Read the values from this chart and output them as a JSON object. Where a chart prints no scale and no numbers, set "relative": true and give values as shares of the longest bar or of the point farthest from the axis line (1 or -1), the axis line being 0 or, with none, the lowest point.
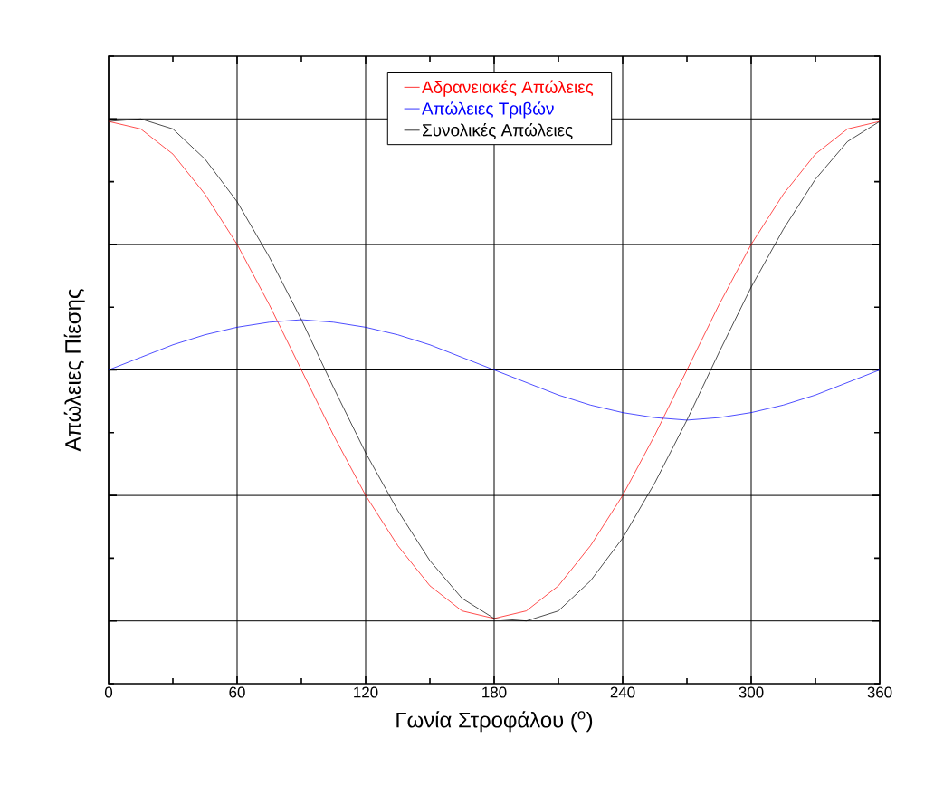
{
  "chart_data": {
    "type": "line",
    "relative": true,
    "xlabel": "Γωνία Στροφάλου ($^{o}$)",
    "ylabel": "Απώλειες Πίεσης",
    "x": [
      0,
      15,
      30,
      45,
      60,
      75,
      90,
      105,
      120,
      135,
      150,
      165,
      180,
      195,
      210,
      225,
      240,
      255,
      270,
      285,
      300,
      315,
      330,
      345,
      360
    ],
    "xlim": [
      0,
      360
    ],
    "xticks": [
      0,
      60,
      120,
      180,
      240,
      300,
      360
    ],
    "series": [
      {
        "name": "Αδρανειακές Απώλειες",
        "color": "#ff0000",
        "values": [
          0.99,
          0.96,
          0.86,
          0.7,
          0.5,
          0.26,
          0,
          -0.26,
          -0.5,
          -0.7,
          -0.86,
          -0.96,
          -0.99,
          -0.96,
          -0.86,
          -0.7,
          -0.5,
          -0.26,
          0,
          0.26,
          0.5,
          0.7,
          0.86,
          0.96,
          0.99
        ]
      },
      {
        "name": "Απώλειες Τριβών",
        "color": "#0000ff",
        "values": [
          0,
          0.05,
          0.1,
          0.14,
          0.17,
          0.19,
          0.2,
          0.19,
          0.17,
          0.14,
          0.1,
          0.05,
          0,
          -0.05,
          -0.1,
          -0.14,
          -0.17,
          -0.19,
          -0.2,
          -0.19,
          -0.17,
          -0.14,
          -0.1,
          -0.05,
          0
        ]
      },
      {
        "name": "Συνολικές Απώλειες",
        "color": "#000000",
        "values": [
          0.99,
          1,
          0.96,
          0.84,
          0.67,
          0.45,
          0.2,
          -0.07,
          -0.33,
          -0.56,
          -0.76,
          -0.91,
          -0.99,
          -1,
          -0.96,
          -0.84,
          -0.67,
          -0.45,
          -0.2,
          0.07,
          0.33,
          0.56,
          0.76,
          0.91,
          0.99
        ]
      }
    ],
    "grid": true,
    "legend": "top",
    "tick_labels": "x",
    "marker": "none",
    "line_style": "solid"
  }
}
